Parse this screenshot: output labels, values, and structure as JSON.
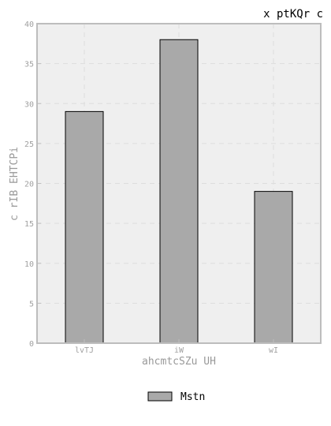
{
  "chart_data": {
    "type": "bar",
    "title": "x ptKQr  c",
    "xlabel": "ahcmtcSZu UH",
    "ylabel": "c rIB EHTCPi",
    "categories": [
      "lvTJ",
      "iW",
      "wI"
    ],
    "series": [
      {
        "name": "Mstn",
        "values": [
          29,
          38,
          19
        ]
      }
    ],
    "ylim": [
      0,
      40
    ],
    "yticks": [
      0,
      5,
      10,
      15,
      20,
      25,
      30,
      35,
      40
    ],
    "grid": true,
    "legend": "bottom-center",
    "colors": {
      "bar_fill": "#a9a9a9",
      "bar_stroke": "#000000",
      "plot_bg": "#efefef",
      "frame": "#bdbdbd",
      "grid": "#dddddd",
      "tick_text": "#a0a0a0",
      "label_text": "#999999",
      "title_text": "#000000"
    }
  }
}
